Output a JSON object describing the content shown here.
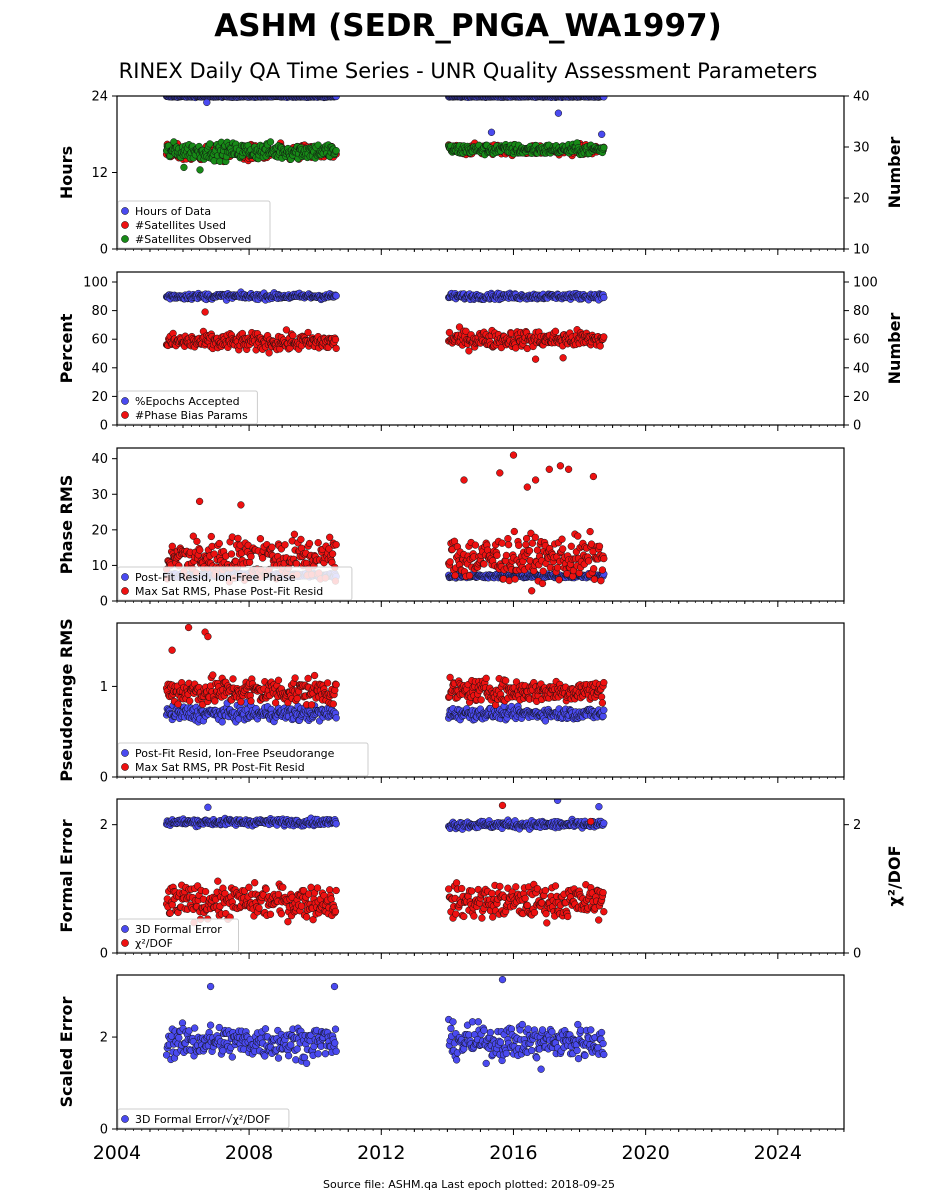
{
  "header": {
    "title": "ASHM (SEDR_PNGA_WA1997)",
    "subtitle": "RINEX Daily QA Time Series - UNR Quality Assessment Parameters"
  },
  "footer": {
    "source_note": "Source file: ASHM.qa Last epoch plotted: 2018-09-25"
  },
  "colors": {
    "blue": "#4a4af0",
    "red": "#ee1111",
    "green": "#178a17",
    "axis": "#000000"
  },
  "x_axis": {
    "range": [
      "2004-01-01",
      "2026-01-01"
    ],
    "ticks": [
      "2004",
      "2008",
      "2012",
      "2016",
      "2020",
      "2024"
    ],
    "data_segments": [
      [
        "2005-07-01",
        "2010-08-20"
      ],
      [
        "2014-01-15",
        "2018-09-25"
      ]
    ]
  },
  "chart_data": [
    {
      "type": "scatter",
      "ylabel": "Hours",
      "ylabel_right": "Number",
      "ylim": [
        0,
        24
      ],
      "yticks": [
        "0",
        "12",
        "24"
      ],
      "ylim_right": [
        10,
        40
      ],
      "yticks_right": [
        "10",
        "20",
        "30",
        "40"
      ],
      "legend": "bottom-left",
      "series": [
        {
          "name": "Hours of Data",
          "color": "blue",
          "axis": "left",
          "summary": {
            "seg1": {
              "center": 23.9,
              "spread": 0.1
            },
            "seg2": {
              "center": 23.9,
              "spread": 0.1
            }
          },
          "outliers": [
            [
              "2006-09-20",
              23.0
            ],
            [
              "2015-05-01",
              18.3
            ],
            [
              "2017-05-10",
              21.3
            ],
            [
              "2018-09-01",
              18.0
            ]
          ]
        },
        {
          "name": "#Satellites Used",
          "color": "red",
          "axis": "right",
          "summary": {
            "seg1": {
              "center": 28.8,
              "spread": 1.6
            },
            "seg2": {
              "center": 29.5,
              "spread": 1.0
            }
          },
          "outliers": [
            [
              "2009-08-01",
              30.0
            ]
          ]
        },
        {
          "name": "#Satellites Observed",
          "color": "green",
          "axis": "right",
          "summary": {
            "seg1": {
              "center": 29.2,
              "spread": 1.6
            },
            "seg2": {
              "center": 29.5,
              "spread": 1.0
            }
          },
          "outliers": [
            [
              "2006-01-10",
              26.0
            ],
            [
              "2006-07-05",
              25.5
            ]
          ]
        }
      ]
    },
    {
      "type": "scatter",
      "ylabel": "Percent",
      "ylabel_right": "Number",
      "ylim": [
        0,
        107
      ],
      "yticks": [
        "0",
        "20",
        "40",
        "60",
        "80",
        "100"
      ],
      "ylim_right": [
        0,
        107
      ],
      "yticks_right": [
        "0",
        "20",
        "40",
        "60",
        "80",
        "100"
      ],
      "legend": "bottom-left",
      "series": [
        {
          "name": "%Epochs Accepted",
          "color": "blue",
          "axis": "left",
          "summary": {
            "seg1": {
              "center": 90,
              "spread": 2
            },
            "seg2": {
              "center": 90,
              "spread": 2
            }
          },
          "outliers": []
        },
        {
          "name": "#Phase Bias Params",
          "color": "red",
          "axis": "right",
          "summary": {
            "seg1": {
              "center": 58,
              "spread": 6
            },
            "seg2": {
              "center": 60,
              "spread": 6
            }
          },
          "outliers": [
            [
              "2006-09-01",
              79
            ],
            [
              "2016-09-01",
              46
            ],
            [
              "2017-07-01",
              47
            ]
          ]
        }
      ]
    },
    {
      "type": "scatter",
      "ylabel": "Phase RMS",
      "ylim": [
        0,
        43
      ],
      "yticks": [
        "0",
        "10",
        "20",
        "30",
        "40"
      ],
      "legend": "bottom-left",
      "series": [
        {
          "name": "Post-Fit Resid, Ion-Free Phase",
          "color": "blue",
          "axis": "left",
          "summary": {
            "seg1": {
              "center": 7.2,
              "spread": 0.6
            },
            "seg2": {
              "center": 7.0,
              "spread": 0.5
            }
          },
          "outliers": []
        },
        {
          "name": "Max Sat RMS, Phase Post-Fit Resid",
          "color": "red",
          "axis": "left",
          "summary": {
            "seg1": {
              "center": 12,
              "spread": 6
            },
            "seg2": {
              "center": 12,
              "spread": 6
            }
          },
          "outliers": [
            [
              "2006-07-01",
              28
            ],
            [
              "2007-10-01",
              27
            ],
            [
              "2014-07-01",
              34
            ],
            [
              "2015-08-01",
              36
            ],
            [
              "2016-01-01",
              41
            ],
            [
              "2016-06-01",
              32
            ],
            [
              "2016-09-01",
              34
            ],
            [
              "2017-02-01",
              37
            ],
            [
              "2017-06-01",
              38
            ],
            [
              "2017-09-01",
              37
            ],
            [
              "2018-06-01",
              35
            ]
          ]
        }
      ]
    },
    {
      "type": "scatter",
      "ylabel": "Pseudorange RMS",
      "ylim": [
        0,
        1.7
      ],
      "yticks": [
        "0",
        "1"
      ],
      "legend": "bottom-left",
      "series": [
        {
          "name": "Post-Fit Resid, Ion-Free Pseudorange",
          "color": "blue",
          "axis": "left",
          "summary": {
            "seg1": {
              "center": 0.7,
              "spread": 0.08
            },
            "seg2": {
              "center": 0.7,
              "spread": 0.06
            }
          },
          "outliers": []
        },
        {
          "name": "Max Sat RMS, PR Post-Fit Resid",
          "color": "red",
          "axis": "left",
          "summary": {
            "seg1": {
              "center": 0.95,
              "spread": 0.15
            },
            "seg2": {
              "center": 0.95,
              "spread": 0.12
            }
          },
          "outliers": [
            [
              "2006-03-01",
              1.65
            ],
            [
              "2006-09-01",
              1.6
            ],
            [
              "2006-10-01",
              1.55
            ],
            [
              "2005-09-01",
              1.4
            ]
          ]
        }
      ]
    },
    {
      "type": "scatter",
      "ylabel": "Formal Error",
      "ylabel_right": "χ²/DOF",
      "ylim": [
        0,
        2.4
      ],
      "yticks": [
        "0",
        "2"
      ],
      "ylim_right": [
        0,
        2.4
      ],
      "yticks_right": [
        "0",
        "2"
      ],
      "legend": "bottom-left",
      "series": [
        {
          "name": "3D Formal Error",
          "color": "blue",
          "axis": "left",
          "summary": {
            "seg1": {
              "center": 2.04,
              "spread": 0.05
            },
            "seg2": {
              "center": 2.0,
              "spread": 0.06
            }
          },
          "outliers": [
            [
              "2006-10-01",
              2.27
            ],
            [
              "2017-05-01",
              2.38
            ],
            [
              "2018-08-01",
              2.28
            ]
          ]
        },
        {
          "name": "χ²/DOF",
          "color": "red",
          "axis": "right",
          "summary": {
            "seg1": {
              "center": 0.8,
              "spread": 0.25
            },
            "seg2": {
              "center": 0.8,
              "spread": 0.25
            }
          },
          "outliers": [
            [
              "2015-09-01",
              2.3
            ],
            [
              "2018-05-01",
              2.05
            ]
          ]
        }
      ]
    },
    {
      "type": "scatter",
      "ylabel": "Scaled Error",
      "ylim": [
        0,
        3.35
      ],
      "yticks": [
        "0",
        "2"
      ],
      "legend": "bottom-left",
      "series": [
        {
          "name": "3D Formal Error/√χ²/DOF",
          "color": "blue",
          "axis": "left",
          "summary": {
            "seg1": {
              "center": 1.9,
              "spread": 0.35
            },
            "seg2": {
              "center": 1.9,
              "spread": 0.35
            }
          },
          "outliers": [
            [
              "2006-11-01",
              3.1
            ],
            [
              "2010-08-01",
              3.1
            ],
            [
              "2015-09-01",
              3.25
            ],
            [
              "2016-11-01",
              1.3
            ]
          ]
        }
      ]
    }
  ]
}
